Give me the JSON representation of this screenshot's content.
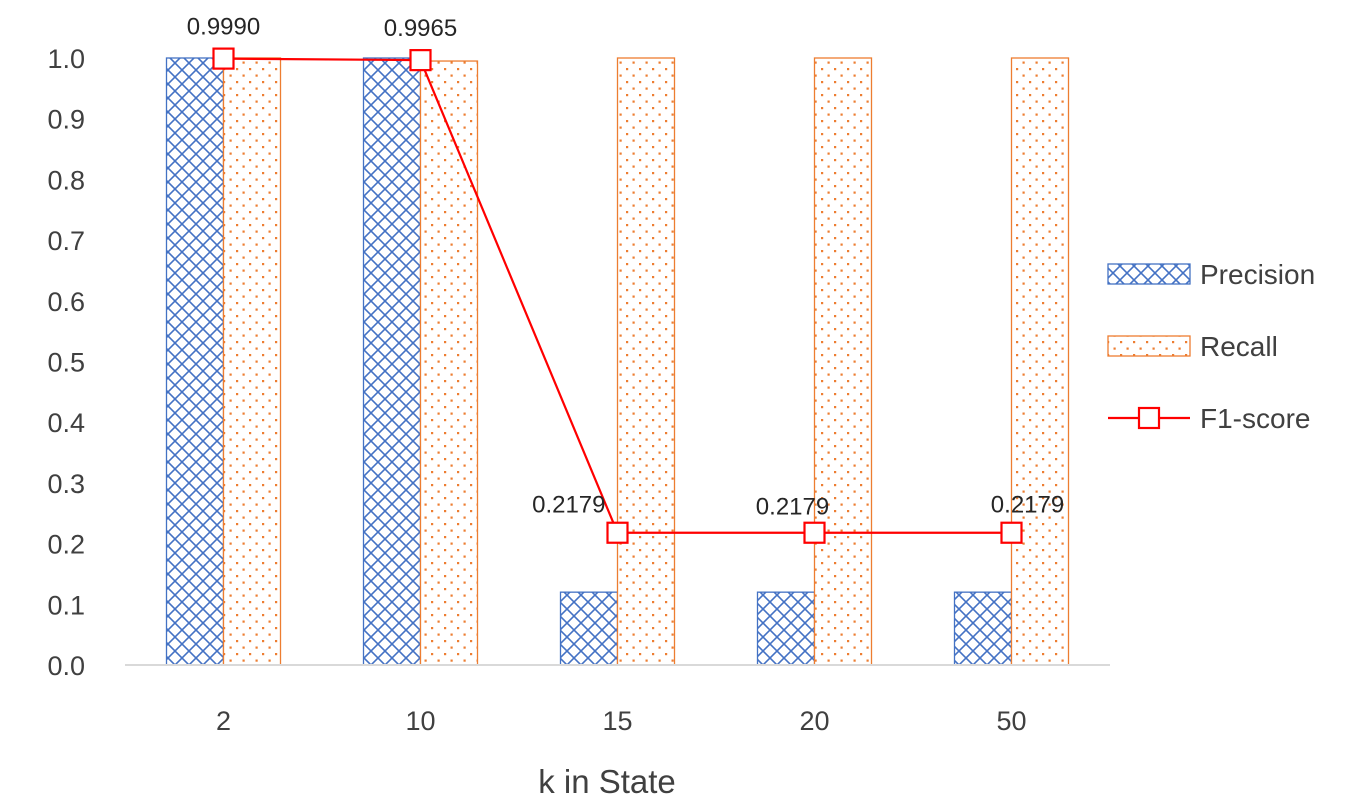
{
  "chart_data": {
    "type": "bar",
    "categories": [
      "2",
      "10",
      "15",
      "20",
      "50"
    ],
    "series": [
      {
        "name": "Precision",
        "kind": "bar",
        "pattern": "crosshatch",
        "color": "#4472C4",
        "values": [
          1.0,
          1.0,
          0.12,
          0.12,
          0.12
        ]
      },
      {
        "name": "Recall",
        "kind": "bar",
        "pattern": "dotted",
        "color": "#ED7D31",
        "values": [
          1.0,
          0.995,
          1.0,
          1.0,
          1.0
        ]
      },
      {
        "name": "F1-score",
        "kind": "line",
        "marker": "square",
        "color": "#FF0000",
        "values": [
          0.999,
          0.9965,
          0.2179,
          0.2179,
          0.2179
        ]
      }
    ],
    "data_labels": [
      "0.9990",
      "0.9965",
      "0.2179",
      "0.2179",
      "0.2179"
    ],
    "y_ticks": [
      "0.0",
      "0.1",
      "0.2",
      "0.3",
      "0.4",
      "0.5",
      "0.6",
      "0.7",
      "0.8",
      "0.9",
      "1.0"
    ],
    "ylim": [
      0,
      1.0
    ],
    "title": "",
    "xlabel": "k in State",
    "ylabel": "",
    "grid": false,
    "legend_position": "right"
  }
}
